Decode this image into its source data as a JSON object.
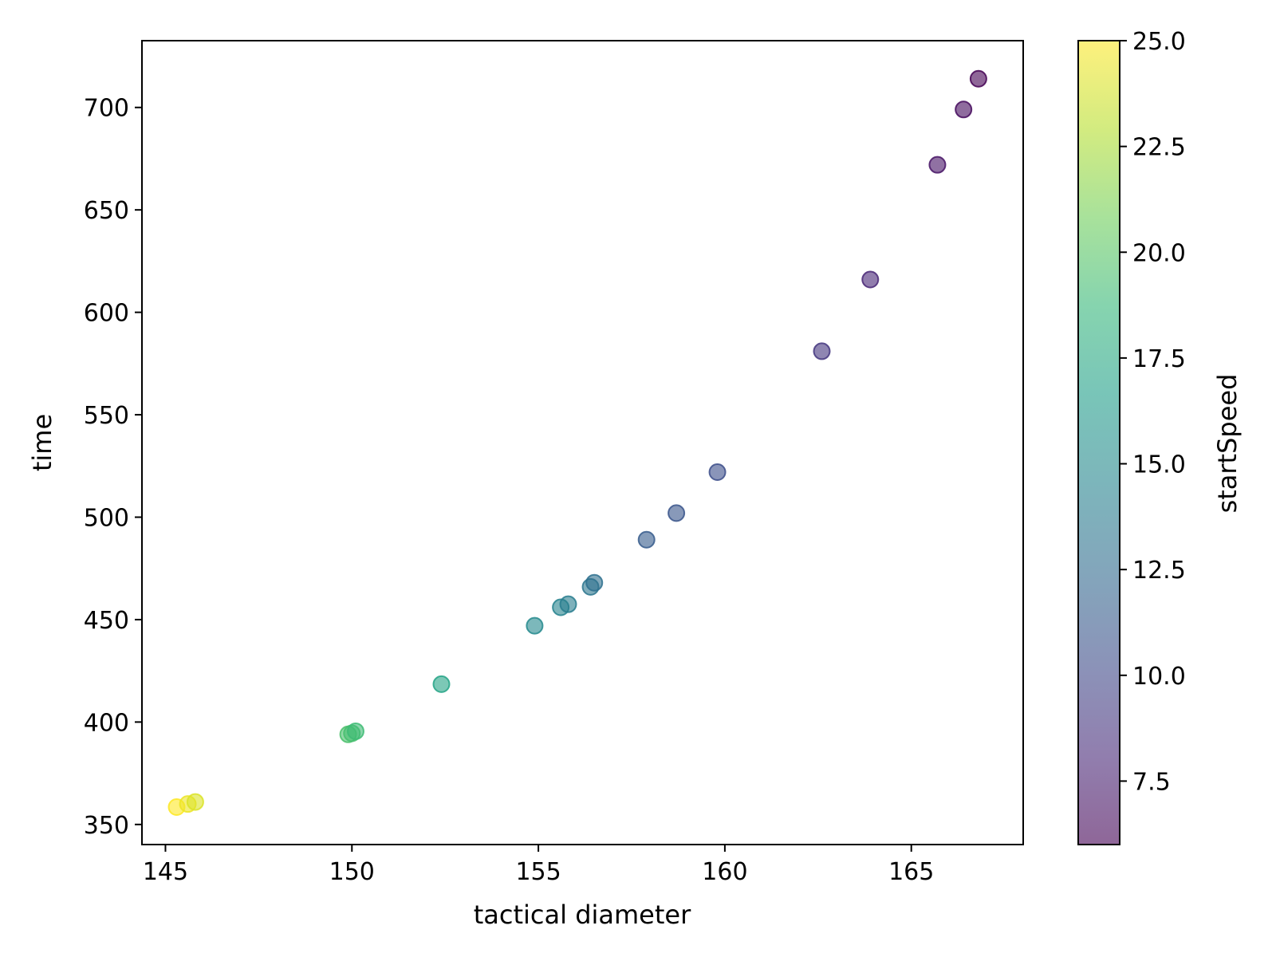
{
  "chart_data": {
    "type": "scatter",
    "title": "",
    "xlabel": "tactical diameter",
    "ylabel": "time",
    "xlim": [
      144.37,
      168.0
    ],
    "ylim": [
      340.2,
      732.6
    ],
    "xticks": [
      145,
      150,
      155,
      160,
      165
    ],
    "yticks": [
      350,
      400,
      450,
      500,
      550,
      600,
      650,
      700
    ],
    "grid": false,
    "colorbar": {
      "label": "startSpeed",
      "colormap": "viridis",
      "range": [
        6.0,
        25.0
      ],
      "ticks": [
        "7.5",
        "10.0",
        "12.5",
        "15.0",
        "17.5",
        "20.0",
        "22.5",
        "25.0"
      ],
      "alpha": 0.6
    },
    "points": [
      {
        "x": 145.3,
        "y": 358.5,
        "c": 25.0
      },
      {
        "x": 145.6,
        "y": 360.0,
        "c": 24.5
      },
      {
        "x": 145.8,
        "y": 361.0,
        "c": 24.0
      },
      {
        "x": 149.9,
        "y": 394.0,
        "c": 19.5
      },
      {
        "x": 150.0,
        "y": 394.5,
        "c": 19.3
      },
      {
        "x": 150.1,
        "y": 395.5,
        "c": 19.0
      },
      {
        "x": 152.4,
        "y": 418.5,
        "c": 17.0
      },
      {
        "x": 154.9,
        "y": 447.0,
        "c": 15.0
      },
      {
        "x": 155.6,
        "y": 456.0,
        "c": 14.5
      },
      {
        "x": 155.8,
        "y": 457.5,
        "c": 14.0
      },
      {
        "x": 156.4,
        "y": 466.0,
        "c": 13.5
      },
      {
        "x": 156.5,
        "y": 468.0,
        "c": 13.0
      },
      {
        "x": 157.9,
        "y": 489.0,
        "c": 11.5
      },
      {
        "x": 158.7,
        "y": 502.0,
        "c": 11.0
      },
      {
        "x": 159.8,
        "y": 522.0,
        "c": 10.5
      },
      {
        "x": 162.6,
        "y": 581.0,
        "c": 9.0
      },
      {
        "x": 163.9,
        "y": 616.0,
        "c": 8.0
      },
      {
        "x": 165.7,
        "y": 672.0,
        "c": 7.0
      },
      {
        "x": 166.4,
        "y": 699.0,
        "c": 6.5
      },
      {
        "x": 166.8,
        "y": 714.0,
        "c": 6.0
      }
    ]
  }
}
